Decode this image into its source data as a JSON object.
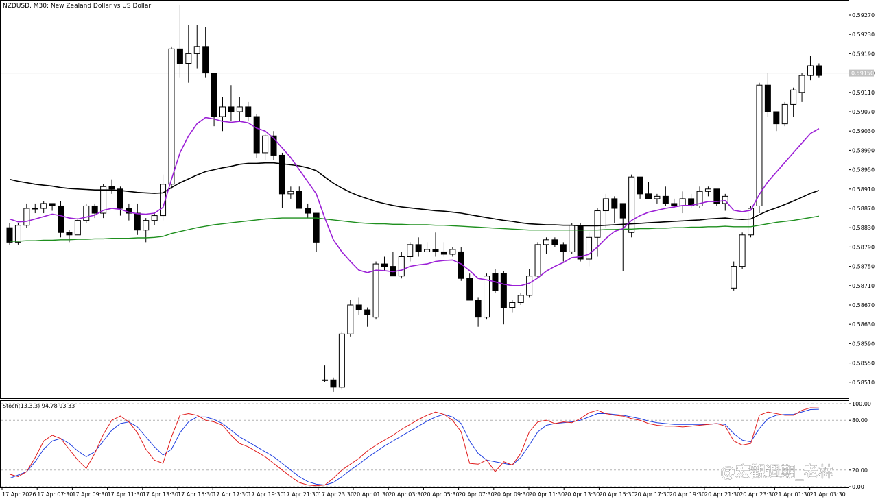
{
  "header": {
    "symbol_label": "NZDUSD, M30:  New Zealand Dollar vs US Dollar",
    "indicator_label": "Stoch(13,3,3) 94.78 93.33",
    "current_price": "0.59150"
  },
  "watermark": {
    "text": "@宏觀週期_老林"
  },
  "colors": {
    "bull_fill": "#ffffff",
    "bear_fill": "#000000",
    "wick": "#000000",
    "ma_fast": "#9b1fd6",
    "ma_slow": "#000000",
    "ma_long": "#1e8f1e",
    "stoch_main": "#e01b1b",
    "stoch_signal": "#1f3fe0"
  },
  "chart_data": [
    {
      "type": "candlestick",
      "symbol": "NZDUSD",
      "timeframe": "M30",
      "ylim": [
        0.5849,
        0.593
      ],
      "y_ticks": [
        "0.59270",
        "0.59230",
        "0.59190",
        "0.59150",
        "0.59110",
        "0.59070",
        "0.59030",
        "0.58990",
        "0.58950",
        "0.58910",
        "0.58870",
        "0.58830",
        "0.58790",
        "0.58750",
        "0.58710",
        "0.58670",
        "0.58630",
        "0.58590",
        "0.58550",
        "0.58510"
      ],
      "x_ticks": [
        "17 Apr 2026",
        "17 Apr 07:30",
        "17 Apr 09:30",
        "17 Apr 11:30",
        "17 Apr 13:30",
        "17 Apr 15:30",
        "17 Apr 17:30",
        "17 Apr 19:30",
        "17 Apr 21:30",
        "17 Apr 23:30",
        "20 Apr 01:30",
        "20 Apr 03:30",
        "20 Apr 05:30",
        "20 Apr 07:30",
        "20 Apr 09:30",
        "20 Apr 11:30",
        "20 Apr 13:30",
        "20 Apr 15:30",
        "20 Apr 17:30",
        "20 Apr 19:30",
        "20 Apr 21:30",
        "20 Apr 23:30",
        "21 Apr 01:30",
        "21 Apr 03:30"
      ],
      "candles": [
        [
          0.5883,
          0.5884,
          0.58795,
          0.588
        ],
        [
          0.588,
          0.5884,
          0.58795,
          0.58835
        ],
        [
          0.58835,
          0.5888,
          0.5883,
          0.5887
        ],
        [
          0.5887,
          0.5888,
          0.5886,
          0.5887
        ],
        [
          0.5887,
          0.58885,
          0.5886,
          0.5888
        ],
        [
          0.5888,
          0.5888,
          0.58865,
          0.58875
        ],
        [
          0.58875,
          0.58885,
          0.5881,
          0.5882
        ],
        [
          0.5882,
          0.58825,
          0.588,
          0.58815
        ],
        [
          0.58815,
          0.5885,
          0.58815,
          0.58845
        ],
        [
          0.58845,
          0.5888,
          0.5884,
          0.58875
        ],
        [
          0.58875,
          0.5888,
          0.5885,
          0.5886
        ],
        [
          0.5886,
          0.5892,
          0.5885,
          0.58915
        ],
        [
          0.58915,
          0.5893,
          0.589,
          0.5891
        ],
        [
          0.5891,
          0.58915,
          0.58855,
          0.5887
        ],
        [
          0.5887,
          0.5888,
          0.58845,
          0.5886
        ],
        [
          0.5886,
          0.5888,
          0.58815,
          0.58825
        ],
        [
          0.58825,
          0.5885,
          0.588,
          0.58845
        ],
        [
          0.58845,
          0.5886,
          0.58835,
          0.58855
        ],
        [
          0.58855,
          0.5894,
          0.58845,
          0.5892
        ],
        [
          0.5892,
          0.59205,
          0.5891,
          0.592
        ],
        [
          0.592,
          0.5929,
          0.5914,
          0.5917
        ],
        [
          0.5917,
          0.5925,
          0.5913,
          0.5919
        ],
        [
          0.5919,
          0.5925,
          0.5916,
          0.59205
        ],
        [
          0.59205,
          0.59245,
          0.5914,
          0.5915
        ],
        [
          0.5915,
          0.5915,
          0.5904,
          0.5906
        ],
        [
          0.5906,
          0.591,
          0.5903,
          0.5908
        ],
        [
          0.5908,
          0.59125,
          0.5905,
          0.5907
        ],
        [
          0.5907,
          0.591,
          0.5905,
          0.5908
        ],
        [
          0.5908,
          0.5909,
          0.5905,
          0.5906
        ],
        [
          0.5906,
          0.59065,
          0.58975,
          0.58985
        ],
        [
          0.58985,
          0.59025,
          0.5897,
          0.5902
        ],
        [
          0.5902,
          0.5903,
          0.5897,
          0.5898
        ],
        [
          0.5898,
          0.58985,
          0.5887,
          0.589
        ],
        [
          0.589,
          0.58915,
          0.5889,
          0.58905
        ],
        [
          0.58905,
          0.58915,
          0.5887,
          0.5887
        ],
        [
          0.5887,
          0.5888,
          0.5885,
          0.5886
        ],
        [
          0.5886,
          0.5886,
          0.5878,
          0.588
        ],
        [
          0.58515,
          0.58545,
          0.5851,
          0.58515
        ],
        [
          0.58515,
          0.5852,
          0.5849,
          0.585
        ],
        [
          0.585,
          0.58615,
          0.58495,
          0.5861
        ],
        [
          0.5861,
          0.5868,
          0.58605,
          0.5867
        ],
        [
          0.5867,
          0.58685,
          0.5865,
          0.5866
        ],
        [
          0.5866,
          0.58665,
          0.58625,
          0.5865
        ],
        [
          0.58645,
          0.5876,
          0.5864,
          0.58755
        ],
        [
          0.58755,
          0.5877,
          0.5874,
          0.5875
        ],
        [
          0.5875,
          0.5878,
          0.5873,
          0.5873
        ],
        [
          0.5873,
          0.5878,
          0.58725,
          0.5877
        ],
        [
          0.5877,
          0.588,
          0.5876,
          0.58795
        ],
        [
          0.58795,
          0.5881,
          0.5877,
          0.5878
        ],
        [
          0.5878,
          0.588,
          0.5878,
          0.58785
        ],
        [
          0.58785,
          0.5882,
          0.5877,
          0.5878
        ],
        [
          0.5878,
          0.588,
          0.5877,
          0.58775
        ],
        [
          0.58775,
          0.5879,
          0.5877,
          0.58785
        ],
        [
          0.5878,
          0.5879,
          0.5872,
          0.58725
        ],
        [
          0.58725,
          0.58735,
          0.5868,
          0.5868
        ],
        [
          0.5868,
          0.58685,
          0.58625,
          0.58645
        ],
        [
          0.58645,
          0.58735,
          0.5864,
          0.5873
        ],
        [
          0.58735,
          0.58745,
          0.58695,
          0.587
        ],
        [
          0.58735,
          0.5874,
          0.5863,
          0.58665
        ],
        [
          0.58665,
          0.5868,
          0.58655,
          0.58675
        ],
        [
          0.58675,
          0.58695,
          0.5867,
          0.5869
        ],
        [
          0.5869,
          0.58745,
          0.58685,
          0.5873
        ],
        [
          0.5873,
          0.588,
          0.58725,
          0.58795
        ],
        [
          0.58795,
          0.5881,
          0.58775,
          0.58805
        ],
        [
          0.58805,
          0.5881,
          0.5879,
          0.58795
        ],
        [
          0.58795,
          0.588,
          0.5876,
          0.5878
        ],
        [
          0.5878,
          0.5884,
          0.58775,
          0.58835
        ],
        [
          0.58835,
          0.5884,
          0.5876,
          0.58765
        ],
        [
          0.58765,
          0.5882,
          0.5875,
          0.5881
        ],
        [
          0.5881,
          0.5887,
          0.5877,
          0.58865
        ],
        [
          0.58865,
          0.589,
          0.5883,
          0.5889
        ],
        [
          0.5889,
          0.58895,
          0.5884,
          0.5887
        ],
        [
          0.5888,
          0.58875,
          0.5874,
          0.5885
        ],
        [
          0.5882,
          0.5894,
          0.5881,
          0.58935
        ],
        [
          0.58935,
          0.58935,
          0.5889,
          0.589
        ],
        [
          0.589,
          0.58925,
          0.5889,
          0.5889
        ],
        [
          0.5889,
          0.589,
          0.5888,
          0.58895
        ],
        [
          0.58895,
          0.58915,
          0.58875,
          0.5888
        ],
        [
          0.5888,
          0.5889,
          0.5887,
          0.58875
        ],
        [
          0.58875,
          0.58905,
          0.5886,
          0.5889
        ],
        [
          0.5889,
          0.589,
          0.5887,
          0.58875
        ],
        [
          0.58875,
          0.58915,
          0.5887,
          0.58905
        ],
        [
          0.58905,
          0.58915,
          0.58895,
          0.5891
        ],
        [
          0.5891,
          0.5891,
          0.58875,
          0.5888
        ],
        [
          0.5888,
          0.589,
          0.58865,
          0.58895
        ],
        [
          0.58705,
          0.5876,
          0.587,
          0.5875
        ],
        [
          0.5875,
          0.5882,
          0.58745,
          0.58815
        ],
        [
          0.58815,
          0.58875,
          0.5881,
          0.5887
        ],
        [
          0.58875,
          0.5913,
          0.5886,
          0.59125
        ],
        [
          0.59125,
          0.5915,
          0.5906,
          0.5907
        ],
        [
          0.5907,
          0.5907,
          0.5903,
          0.59045
        ],
        [
          0.59045,
          0.5909,
          0.5904,
          0.59085
        ],
        [
          0.59085,
          0.5912,
          0.5906,
          0.59115
        ],
        [
          0.5911,
          0.5915,
          0.5909,
          0.59145
        ],
        [
          0.59145,
          0.59185,
          0.59135,
          0.59165
        ],
        [
          0.59165,
          0.5917,
          0.5914,
          0.59145
        ]
      ],
      "ma_fast_values": [
        0.58848,
        0.58842,
        0.58843,
        0.58848,
        0.58853,
        0.58858,
        0.58855,
        0.5885,
        0.58848,
        0.58852,
        0.58856,
        0.58866,
        0.5887,
        0.58868,
        0.58862,
        0.58859,
        0.58858,
        0.5886,
        0.58872,
        0.5893,
        0.58985,
        0.5902,
        0.59045,
        0.59058,
        0.59055,
        0.5905,
        0.59048,
        0.5905,
        0.59047,
        0.59036,
        0.5903,
        0.59015,
        0.58995,
        0.58975,
        0.5895,
        0.58925,
        0.589,
        0.5885,
        0.58805,
        0.5878,
        0.5876,
        0.58742,
        0.58737,
        0.58742,
        0.58741,
        0.58739,
        0.58742,
        0.5875,
        0.58753,
        0.58755,
        0.5876,
        0.58762,
        0.58763,
        0.58755,
        0.58741,
        0.58725,
        0.58722,
        0.58718,
        0.58713,
        0.5871,
        0.5871,
        0.58715,
        0.58726,
        0.5874,
        0.5875,
        0.58758,
        0.58768,
        0.5877,
        0.58775,
        0.5879,
        0.58808,
        0.58822,
        0.58828,
        0.58845,
        0.58855,
        0.58862,
        0.58866,
        0.5887,
        0.58873,
        0.58876,
        0.58876,
        0.5888,
        0.58884,
        0.58884,
        0.58886,
        0.58866,
        0.58863,
        0.58866,
        0.58899,
        0.58925,
        0.58945,
        0.58965,
        0.58985,
        0.59005,
        0.59025,
        0.59035
      ],
      "ma_slow_values": [
        0.5893,
        0.58926,
        0.58923,
        0.5892,
        0.58918,
        0.58916,
        0.58913,
        0.58911,
        0.5891,
        0.58909,
        0.58908,
        0.58908,
        0.58908,
        0.58907,
        0.58905,
        0.58903,
        0.58902,
        0.58901,
        0.58902,
        0.58913,
        0.58923,
        0.58931,
        0.58939,
        0.58946,
        0.5895,
        0.58954,
        0.58957,
        0.58961,
        0.58963,
        0.58963,
        0.58964,
        0.58964,
        0.58962,
        0.5896,
        0.58958,
        0.58954,
        0.58948,
        0.58935,
        0.58922,
        0.58912,
        0.58903,
        0.58896,
        0.5889,
        0.58884,
        0.5888,
        0.58876,
        0.58873,
        0.58871,
        0.58869,
        0.58867,
        0.58865,
        0.58864,
        0.58862,
        0.5886,
        0.58857,
        0.58854,
        0.58851,
        0.58848,
        0.58845,
        0.58843,
        0.5884,
        0.58838,
        0.58837,
        0.58836,
        0.58836,
        0.58835,
        0.58835,
        0.58834,
        0.58834,
        0.58834,
        0.58835,
        0.58836,
        0.58837,
        0.58838,
        0.58839,
        0.5884,
        0.58841,
        0.58842,
        0.58843,
        0.58844,
        0.58845,
        0.58846,
        0.58848,
        0.58849,
        0.5885,
        0.58848,
        0.58847,
        0.58848,
        0.58857,
        0.58865,
        0.58871,
        0.58878,
        0.58885,
        0.58893,
        0.58901,
        0.58907
      ],
      "ma_long_values": [
        0.58802,
        0.58802,
        0.58803,
        0.58803,
        0.58804,
        0.58804,
        0.58805,
        0.58805,
        0.58806,
        0.58806,
        0.58807,
        0.58807,
        0.58808,
        0.58808,
        0.58808,
        0.58809,
        0.58809,
        0.5881,
        0.58812,
        0.58818,
        0.58822,
        0.58826,
        0.5883,
        0.58833,
        0.58836,
        0.58838,
        0.5884,
        0.58842,
        0.58844,
        0.58846,
        0.58848,
        0.58849,
        0.5885,
        0.5885,
        0.5885,
        0.5885,
        0.5885,
        0.58848,
        0.58846,
        0.58844,
        0.58842,
        0.5884,
        0.58839,
        0.58838,
        0.58838,
        0.58837,
        0.58837,
        0.58836,
        0.58836,
        0.58836,
        0.58835,
        0.58835,
        0.58834,
        0.58833,
        0.58832,
        0.58831,
        0.5883,
        0.58829,
        0.58828,
        0.58827,
        0.58826,
        0.58825,
        0.58825,
        0.58825,
        0.58825,
        0.58825,
        0.58825,
        0.58825,
        0.58825,
        0.58825,
        0.58826,
        0.58826,
        0.58827,
        0.58827,
        0.58828,
        0.58828,
        0.58829,
        0.58829,
        0.5883,
        0.5883,
        0.58831,
        0.58831,
        0.58832,
        0.58832,
        0.58833,
        0.58832,
        0.58832,
        0.58832,
        0.58835,
        0.58838,
        0.58841,
        0.58843,
        0.58845,
        0.58848,
        0.58851,
        0.58854
      ],
      "current_price": 0.5915
    },
    {
      "type": "line",
      "title": "Stoch(13,3,3) 94.78 93.33",
      "ylim": [
        0,
        100
      ],
      "y_ticks": [
        "100.00",
        "80.00",
        "20.00",
        "0.00"
      ],
      "levels": [
        20,
        80
      ],
      "series": [
        {
          "name": "main",
          "values": [
            15,
            12,
            18,
            35,
            55,
            62,
            58,
            45,
            32,
            22,
            40,
            63,
            80,
            85,
            78,
            65,
            45,
            32,
            28,
            60,
            86,
            88,
            86,
            80,
            78,
            74,
            62,
            52,
            48,
            42,
            36,
            28,
            20,
            12,
            5,
            2,
            1,
            2,
            10,
            20,
            27,
            34,
            43,
            50,
            56,
            62,
            69,
            75,
            81,
            86,
            90,
            87,
            80,
            66,
            28,
            27,
            32,
            18,
            30,
            26,
            40,
            66,
            78,
            80,
            76,
            78,
            77,
            82,
            89,
            92,
            88,
            86,
            85,
            82,
            80,
            76,
            74,
            73,
            73,
            72,
            73,
            74,
            75,
            76,
            73,
            55,
            50,
            52,
            86,
            90,
            88,
            86,
            86,
            92,
            95,
            94.78
          ]
        },
        {
          "name": "signal",
          "values": [
            10,
            14,
            18,
            30,
            45,
            55,
            58,
            52,
            43,
            36,
            42,
            55,
            68,
            76,
            78,
            72,
            60,
            48,
            38,
            45,
            65,
            78,
            84,
            84,
            81,
            76,
            68,
            60,
            54,
            48,
            42,
            36,
            28,
            20,
            12,
            6,
            3,
            2,
            5,
            12,
            20,
            27,
            35,
            42,
            49,
            55,
            61,
            67,
            73,
            79,
            84,
            87,
            84,
            76,
            55,
            40,
            32,
            30,
            28,
            26,
            35,
            50,
            66,
            74,
            76,
            77,
            78,
            80,
            84,
            88,
            88,
            87,
            86,
            84,
            82,
            79,
            77,
            76,
            75,
            75,
            75,
            75,
            75,
            76,
            75,
            64,
            56,
            54,
            70,
            82,
            86,
            87,
            87,
            90,
            93,
            93.33
          ]
        }
      ]
    }
  ]
}
